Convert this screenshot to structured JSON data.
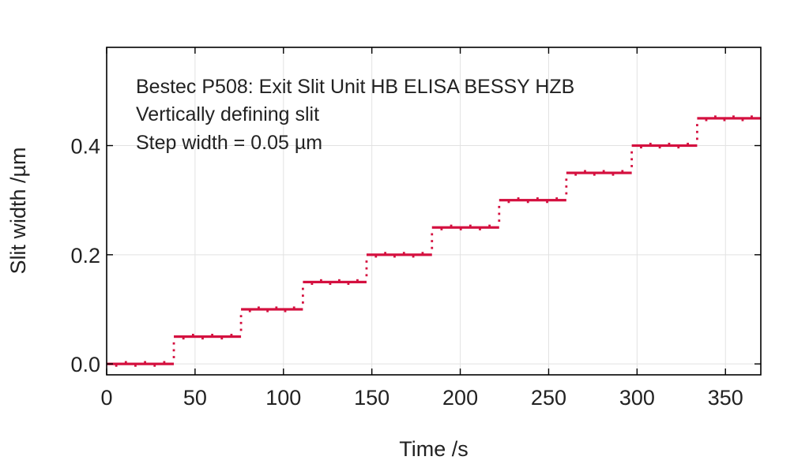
{
  "chart_data": {
    "type": "scatter",
    "title": "",
    "xlabel": "Time /s",
    "ylabel": "Slit width /µm",
    "xlim": [
      0,
      370
    ],
    "ylim": [
      -0.02,
      0.58
    ],
    "xticks": [
      0,
      50,
      100,
      150,
      200,
      250,
      300,
      350
    ],
    "yticks": [
      0.0,
      0.2,
      0.4
    ],
    "xtick_labels": [
      "0",
      "50",
      "100",
      "150",
      "200",
      "250",
      "300",
      "350"
    ],
    "ytick_labels": [
      "0.0",
      "0.2",
      "0.4"
    ],
    "grid": true,
    "annotations": [
      "Bestec P508: Exit Slit Unit HB ELISA BESSY HZB",
      "Vertically defining slit",
      "Step width = 0.05 µm"
    ],
    "marker_color": "#d4103f",
    "steps": [
      {
        "x_start": 0,
        "x_end": 38,
        "y": 0.0
      },
      {
        "x_start": 38,
        "x_end": 76,
        "y": 0.05
      },
      {
        "x_start": 76,
        "x_end": 111,
        "y": 0.1
      },
      {
        "x_start": 111,
        "x_end": 147,
        "y": 0.15
      },
      {
        "x_start": 147,
        "x_end": 184,
        "y": 0.2
      },
      {
        "x_start": 184,
        "x_end": 222,
        "y": 0.25
      },
      {
        "x_start": 222,
        "x_end": 260,
        "y": 0.3
      },
      {
        "x_start": 260,
        "x_end": 297,
        "y": 0.35
      },
      {
        "x_start": 297,
        "x_end": 334,
        "y": 0.4
      },
      {
        "x_start": 334,
        "x_end": 370,
        "y": 0.45
      }
    ]
  }
}
